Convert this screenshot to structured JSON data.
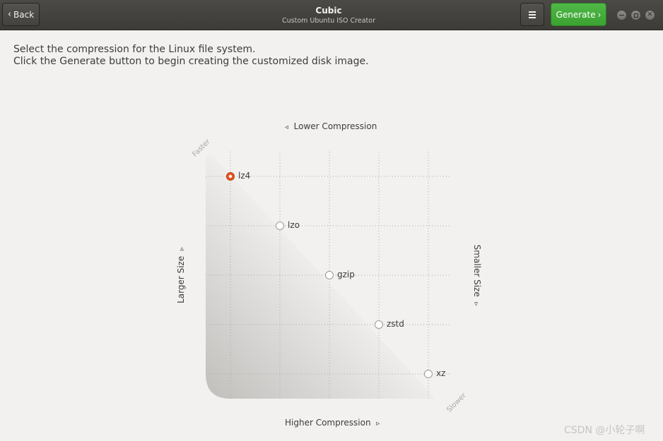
{
  "header": {
    "back_label": "Back",
    "title": "Cubic",
    "subtitle": "Custom Ubuntu ISO Creator",
    "generate_label": "Generate",
    "icons": {
      "back": "chevron-left-icon",
      "menu": "hamburger-menu-icon",
      "generate": "chevron-right-icon"
    }
  },
  "instructions": {
    "line1": "Select the compression for the Linux file system.",
    "line2": "Click the Generate button to begin creating the customized disk image."
  },
  "compression": {
    "top_label": "Lower Compression",
    "bottom_label": "Higher Compression",
    "left_label": "Larger Size",
    "right_label": "Smaller Size",
    "speed_fast_label": "Faster",
    "speed_slow_label": "Slower",
    "options": [
      "lz4",
      "lzo",
      "gzip",
      "zstd",
      "xz"
    ],
    "selected": "lz4"
  },
  "colors": {
    "accent": "#e95420",
    "generate_button": "#3ba231",
    "header": "#3c3b37",
    "background": "#f2f1f0"
  },
  "watermark": "CSDN @小轮子啊"
}
